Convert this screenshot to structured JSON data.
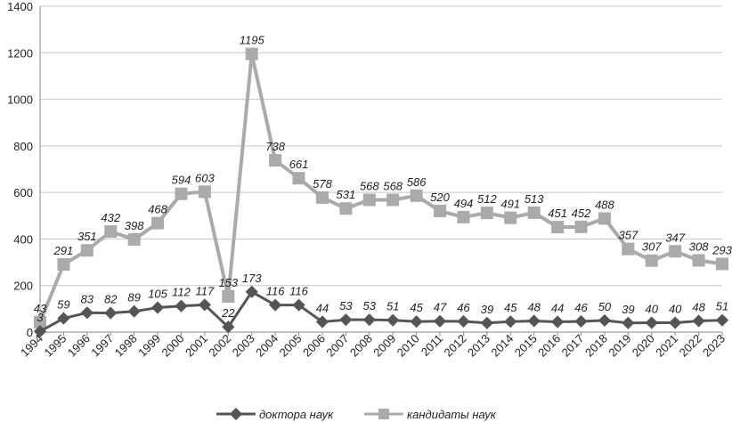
{
  "chart_data": {
    "type": "line",
    "x": [
      "1994",
      "1995",
      "1996",
      "1997",
      "1998",
      "1999",
      "2000",
      "2001",
      "2002",
      "2003",
      "2004",
      "2005",
      "2006",
      "2007",
      "2008",
      "2009",
      "2010",
      "2011",
      "2012",
      "2013",
      "2014",
      "2015",
      "2016",
      "2017",
      "2018",
      "2019",
      "2020",
      "2021",
      "2022",
      "2023"
    ],
    "series": [
      {
        "name": "доктора наук",
        "values": [
          3,
          59,
          83,
          82,
          89,
          105,
          112,
          117,
          22,
          173,
          116,
          116,
          44,
          53,
          53,
          51,
          45,
          47,
          46,
          39,
          45,
          48,
          44,
          46,
          50,
          39,
          40,
          40,
          48,
          51
        ],
        "color": "#555555",
        "marker": "diamond"
      },
      {
        "name": "кандидаты наук",
        "values": [
          43,
          291,
          351,
          432,
          398,
          468,
          594,
          603,
          153,
          1195,
          738,
          661,
          578,
          531,
          568,
          568,
          586,
          520,
          494,
          512,
          491,
          513,
          451,
          452,
          488,
          357,
          307,
          347,
          308,
          293
        ],
        "color": "#aaaaaa",
        "marker": "square"
      }
    ],
    "y_ticks": [
      "0",
      "200",
      "400",
      "600",
      "800",
      "1000",
      "1200",
      "1400"
    ],
    "ylim": [
      0,
      1400
    ],
    "grid": true,
    "legend": "bottom"
  }
}
